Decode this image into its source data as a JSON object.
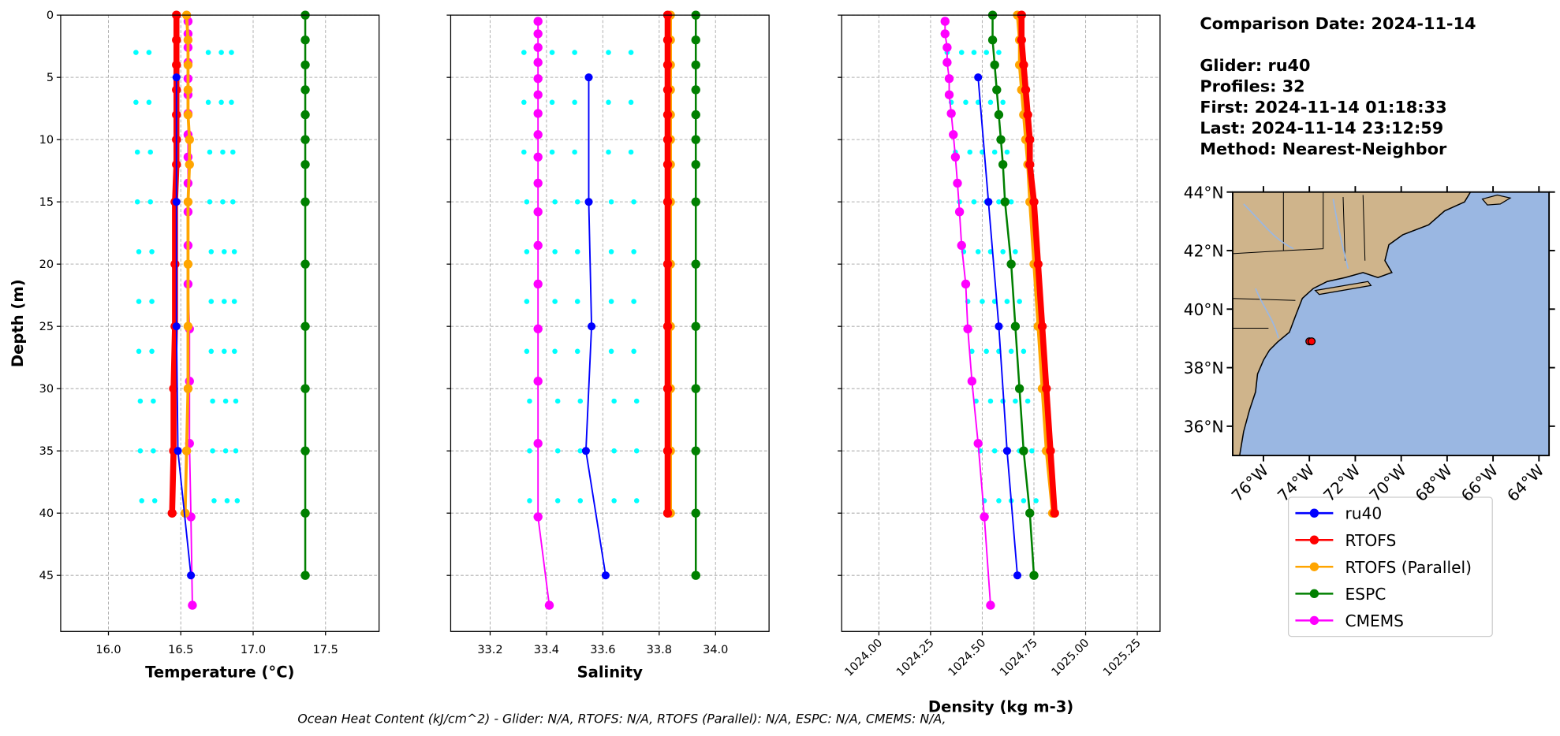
{
  "info": [
    "Comparison Date: 2024-11-14",
    "Glider: ru40",
    "Profiles: 32",
    "First: 2024-11-14 01:18:33",
    "Last: 2024-11-14 23:12:59",
    "Method: Nearest-Neighbor"
  ],
  "footer": "Ocean Heat Content (kJ/cm^2) - Glider: N/A,  RTOFS: N/A,  RTOFS (Parallel): N/A,  ESPC: N/A,  CMEMS: N/A,",
  "chart_data": [
    {
      "type": "line",
      "x_label": "Temperature (°C)",
      "y_label": "Depth (m)",
      "grid": true,
      "xlim": [
        15.67,
        17.87
      ],
      "xticks": [
        {
          "value": 16,
          "label": "16.0"
        },
        16.5,
        {
          "value": 17,
          "label": "17.0"
        },
        17.5
      ],
      "ylim": [
        49.5,
        0
      ],
      "yticks": [
        0,
        5,
        10,
        15,
        20,
        25,
        30,
        35,
        40,
        45
      ],
      "series": [
        {
          "style": "scatter",
          "color": "#00ffff",
          "x": [
            16.19,
            16.19,
            16.2,
            16.2,
            16.21,
            16.21,
            16.21,
            16.22,
            16.22,
            16.23,
            16.28,
            16.28,
            16.29,
            16.29,
            16.3,
            16.3,
            16.3,
            16.31,
            16.31,
            16.32,
            16.69,
            16.69,
            16.7,
            16.7,
            16.71,
            16.71,
            16.71,
            16.72,
            16.72,
            16.73,
            16.78,
            16.78,
            16.79,
            16.79,
            16.8,
            16.8,
            16.8,
            16.81,
            16.81,
            16.82,
            16.85,
            16.85,
            16.86,
            16.86,
            16.87,
            16.87,
            16.87,
            16.88,
            16.88,
            16.89
          ],
          "y": [
            3,
            7,
            11,
            15,
            19,
            23,
            27,
            31,
            35,
            39,
            3,
            7,
            11,
            15,
            19,
            23,
            27,
            31,
            35,
            39,
            3,
            7,
            11,
            15,
            19,
            23,
            27,
            31,
            35,
            39,
            3,
            7,
            11,
            15,
            19,
            23,
            27,
            31,
            35,
            39,
            3,
            7,
            11,
            15,
            19,
            23,
            27,
            31,
            35,
            39
          ]
        },
        {
          "style": "line",
          "name": "ru40",
          "color": "#0000ff",
          "linewidth": 1.5,
          "marker_size": 4,
          "x": [
            16.47,
            16.47,
            16.47,
            16.48,
            16.57
          ],
          "y": [
            5,
            15,
            25,
            35,
            45
          ]
        },
        {
          "style": "line",
          "name": "RTOFS",
          "color": "#ff0000",
          "linewidth": 6,
          "marker_size": 4.5,
          "x": [
            16.47,
            16.47,
            16.47,
            16.47,
            16.47,
            16.47,
            16.47,
            16.46,
            16.46,
            16.46,
            16.45,
            16.45,
            16.44
          ],
          "y": [
            0,
            2,
            4,
            6,
            8,
            10,
            12,
            15,
            20,
            25,
            30,
            35,
            40
          ]
        },
        {
          "style": "line",
          "name": "RTOFS (Parallel)",
          "color": "#ffa500",
          "linewidth": 3,
          "marker_size": 4.5,
          "x": [
            16.54,
            16.55,
            16.55,
            16.55,
            16.55,
            16.56,
            16.56,
            16.55,
            16.55,
            16.55,
            16.55,
            16.54,
            16.53
          ],
          "y": [
            0,
            2,
            4,
            6,
            8,
            10,
            12,
            15,
            20,
            25,
            30,
            35,
            40
          ]
        },
        {
          "style": "line",
          "name": "ESPC",
          "color": "#008000",
          "linewidth": 2,
          "marker_size": 4.5,
          "x": [
            17.36,
            17.36,
            17.36,
            17.36,
            17.36,
            17.36,
            17.36,
            17.36,
            17.36,
            17.36,
            17.36,
            17.36,
            17.36,
            17.36
          ],
          "y": [
            0,
            2,
            4,
            6,
            8,
            10,
            12,
            15,
            20,
            25,
            30,
            35,
            40,
            45
          ]
        },
        {
          "style": "line",
          "name": "CMEMS",
          "color": "#ff00ff",
          "linewidth": 1.5,
          "marker_size": 4.5,
          "x": [
            16.55,
            16.55,
            16.55,
            16.55,
            16.55,
            16.55,
            16.55,
            16.55,
            16.55,
            16.55,
            16.55,
            16.55,
            16.55,
            16.56,
            16.56,
            16.56,
            16.57,
            16.58
          ],
          "y": [
            0.5,
            1.5,
            2.6,
            3.8,
            5.1,
            6.4,
            7.9,
            9.6,
            11.4,
            13.5,
            15.8,
            18.5,
            21.6,
            25.2,
            29.4,
            34.4,
            40.3,
            47.4
          ]
        }
      ]
    },
    {
      "type": "line",
      "x_label": "Salinity",
      "grid": true,
      "xlim": [
        33.06,
        34.19
      ],
      "xticks": [
        33.2,
        33.4,
        33.6,
        33.8,
        {
          "value": 34,
          "label": "34.0"
        }
      ],
      "ylim": [
        49.5,
        0
      ],
      "yticks": [
        0,
        5,
        10,
        15,
        20,
        25,
        30,
        35,
        40,
        45
      ],
      "series": [
        {
          "style": "scatter",
          "color": "#00ffff",
          "x": [
            33.32,
            33.32,
            33.32,
            33.33,
            33.33,
            33.33,
            33.33,
            33.34,
            33.34,
            33.34,
            33.42,
            33.42,
            33.42,
            33.43,
            33.43,
            33.43,
            33.43,
            33.44,
            33.44,
            33.44,
            33.5,
            33.5,
            33.5,
            33.51,
            33.51,
            33.51,
            33.51,
            33.52,
            33.52,
            33.52,
            33.62,
            33.62,
            33.62,
            33.63,
            33.63,
            33.63,
            33.63,
            33.64,
            33.64,
            33.64,
            33.7,
            33.7,
            33.7,
            33.71,
            33.71,
            33.71,
            33.71,
            33.72,
            33.72,
            33.72
          ],
          "y": [
            3,
            7,
            11,
            15,
            19,
            23,
            27,
            31,
            35,
            39,
            3,
            7,
            11,
            15,
            19,
            23,
            27,
            31,
            35,
            39,
            3,
            7,
            11,
            15,
            19,
            23,
            27,
            31,
            35,
            39,
            3,
            7,
            11,
            15,
            19,
            23,
            27,
            31,
            35,
            39,
            3,
            7,
            11,
            15,
            19,
            23,
            27,
            31,
            35,
            39
          ]
        },
        {
          "style": "line",
          "color": "#0000ff",
          "linewidth": 1.5,
          "marker_size": 4,
          "x": [
            33.55,
            33.55,
            33.56,
            33.54,
            33.61
          ],
          "y": [
            5,
            15,
            25,
            35,
            45
          ]
        },
        {
          "style": "line",
          "color": "#ff0000",
          "linewidth": 6,
          "marker_size": 4.5,
          "x": [
            33.83,
            33.83,
            33.83,
            33.83,
            33.83,
            33.83,
            33.83,
            33.83,
            33.83,
            33.83,
            33.83,
            33.83,
            33.83
          ],
          "y": [
            0,
            2,
            4,
            6,
            8,
            10,
            12,
            15,
            20,
            25,
            30,
            35,
            40
          ]
        },
        {
          "style": "line",
          "color": "#ffa500",
          "linewidth": 3,
          "marker_size": 4.5,
          "x": [
            33.84,
            33.84,
            33.84,
            33.84,
            33.84,
            33.84,
            33.84,
            33.84,
            33.84,
            33.84,
            33.84,
            33.84,
            33.84
          ],
          "y": [
            0,
            2,
            4,
            6,
            8,
            10,
            12,
            15,
            20,
            25,
            30,
            35,
            40
          ]
        },
        {
          "style": "line",
          "color": "#008000",
          "linewidth": 2,
          "marker_size": 4.5,
          "x": [
            33.93,
            33.93,
            33.93,
            33.93,
            33.93,
            33.93,
            33.93,
            33.93,
            33.93,
            33.93,
            33.93,
            33.93,
            33.93,
            33.93
          ],
          "y": [
            0,
            2,
            4,
            6,
            8,
            10,
            12,
            15,
            20,
            25,
            30,
            35,
            40,
            45
          ]
        },
        {
          "style": "line",
          "color": "#ff00ff",
          "linewidth": 1.5,
          "marker_size": 4.5,
          "x": [
            33.37,
            33.37,
            33.37,
            33.37,
            33.37,
            33.37,
            33.37,
            33.37,
            33.37,
            33.37,
            33.37,
            33.37,
            33.37,
            33.37,
            33.37,
            33.37,
            33.37,
            33.41
          ],
          "y": [
            0.5,
            1.5,
            2.6,
            3.8,
            5.1,
            6.4,
            7.9,
            9.6,
            11.4,
            13.5,
            15.8,
            18.5,
            21.6,
            25.2,
            29.4,
            34.4,
            40.3,
            47.4
          ]
        }
      ]
    },
    {
      "type": "line",
      "x_label": "Density (kg m-3)",
      "grid": true,
      "xtick_rotation": 45,
      "xlim": [
        1023.82,
        1025.36
      ],
      "xticks": [
        {
          "value": 1024,
          "label": "1024.00"
        },
        1024.25,
        {
          "value": 1024.5,
          "label": "1024.50"
        },
        1024.75,
        {
          "value": 1025,
          "label": "1025.00"
        },
        1025.25
      ],
      "ylim": [
        49.5,
        0
      ],
      "yticks": [
        0,
        5,
        10,
        15,
        20,
        25,
        30,
        35,
        40,
        45
      ],
      "series": [
        {
          "style": "scatter",
          "color": "#00ffff",
          "x": [
            1024.33,
            1024.35,
            1024.37,
            1024.39,
            1024.41,
            1024.43,
            1024.45,
            1024.47,
            1024.49,
            1024.51,
            1024.4,
            1024.42,
            1024.44,
            1024.46,
            1024.48,
            1024.5,
            1024.52,
            1024.54,
            1024.56,
            1024.58,
            1024.46,
            1024.48,
            1024.5,
            1024.52,
            1024.54,
            1024.56,
            1024.58,
            1024.6,
            1024.62,
            1024.64,
            1024.52,
            1024.54,
            1024.56,
            1024.58,
            1024.6,
            1024.62,
            1024.64,
            1024.66,
            1024.68,
            1024.7,
            1024.58,
            1024.6,
            1024.62,
            1024.64,
            1024.66,
            1024.68,
            1024.7,
            1024.72,
            1024.74,
            1024.76
          ],
          "y": [
            3,
            7,
            11,
            15,
            19,
            23,
            27,
            31,
            35,
            39,
            3,
            7,
            11,
            15,
            19,
            23,
            27,
            31,
            35,
            39,
            3,
            7,
            11,
            15,
            19,
            23,
            27,
            31,
            35,
            39,
            3,
            7,
            11,
            15,
            19,
            23,
            27,
            31,
            35,
            39,
            3,
            7,
            11,
            15,
            19,
            23,
            27,
            31,
            35,
            39
          ]
        },
        {
          "style": "line",
          "color": "#0000ff",
          "linewidth": 1.5,
          "marker_size": 4,
          "x": [
            1024.48,
            1024.53,
            1024.58,
            1024.62,
            1024.67
          ],
          "y": [
            5,
            15,
            25,
            35,
            45
          ]
        },
        {
          "style": "line",
          "color": "#ff0000",
          "linewidth": 6,
          "marker_size": 4.5,
          "x": [
            1024.69,
            1024.69,
            1024.7,
            1024.71,
            1024.72,
            1024.73,
            1024.73,
            1024.75,
            1024.77,
            1024.79,
            1024.81,
            1024.83,
            1024.85
          ],
          "y": [
            0,
            2,
            4,
            6,
            8,
            10,
            12,
            15,
            20,
            25,
            30,
            35,
            40
          ]
        },
        {
          "style": "line",
          "color": "#ffa500",
          "linewidth": 3,
          "marker_size": 4.5,
          "x": [
            1024.67,
            1024.68,
            1024.68,
            1024.69,
            1024.7,
            1024.71,
            1024.72,
            1024.73,
            1024.75,
            1024.77,
            1024.79,
            1024.81,
            1024.84
          ],
          "y": [
            0,
            2,
            4,
            6,
            8,
            10,
            12,
            15,
            20,
            25,
            30,
            35,
            40
          ]
        },
        {
          "style": "line",
          "color": "#008000",
          "linewidth": 2,
          "marker_size": 4.5,
          "x": [
            1024.55,
            1024.55,
            1024.56,
            1024.57,
            1024.58,
            1024.59,
            1024.6,
            1024.61,
            1024.64,
            1024.66,
            1024.68,
            1024.7,
            1024.73,
            1024.75
          ],
          "y": [
            0,
            2,
            4,
            6,
            8,
            10,
            12,
            15,
            20,
            25,
            30,
            35,
            40,
            45
          ]
        },
        {
          "style": "line",
          "color": "#ff00ff",
          "linewidth": 1.5,
          "marker_size": 4.5,
          "x": [
            1024.32,
            1024.32,
            1024.33,
            1024.33,
            1024.34,
            1024.34,
            1024.35,
            1024.36,
            1024.37,
            1024.38,
            1024.39,
            1024.4,
            1024.42,
            1024.43,
            1024.45,
            1024.48,
            1024.51,
            1024.54
          ],
          "y": [
            0.5,
            1.5,
            2.6,
            3.8,
            5.1,
            6.4,
            7.9,
            9.6,
            11.4,
            13.5,
            15.8,
            18.5,
            21.6,
            25.2,
            29.4,
            34.4,
            40.3,
            47.4
          ]
        }
      ]
    },
    {
      "type": "map",
      "xlim": [
        -77.34,
        -63.56
      ],
      "ylim": [
        35,
        44
      ],
      "xticks": [
        {
          "value": -76,
          "label": "76°W"
        },
        {
          "value": -74,
          "label": "74°W"
        },
        {
          "value": -72,
          "label": "72°W"
        },
        {
          "value": -70,
          "label": "70°W"
        },
        {
          "value": -68,
          "label": "68°W"
        },
        {
          "value": -66,
          "label": "66°W"
        },
        {
          "value": -64,
          "label": "64°W"
        }
      ],
      "yticks": [
        {
          "value": 36,
          "label": "36°N"
        },
        {
          "value": 38,
          "label": "38°N"
        },
        {
          "value": 40,
          "label": "40°N"
        },
        {
          "value": 42,
          "label": "42°N"
        },
        {
          "value": 44,
          "label": "44°N"
        }
      ],
      "color": "#ff0000",
      "x": [
        -74.0,
        -73.9
      ],
      "y": [
        38.9,
        38.9
      ]
    }
  ]
}
